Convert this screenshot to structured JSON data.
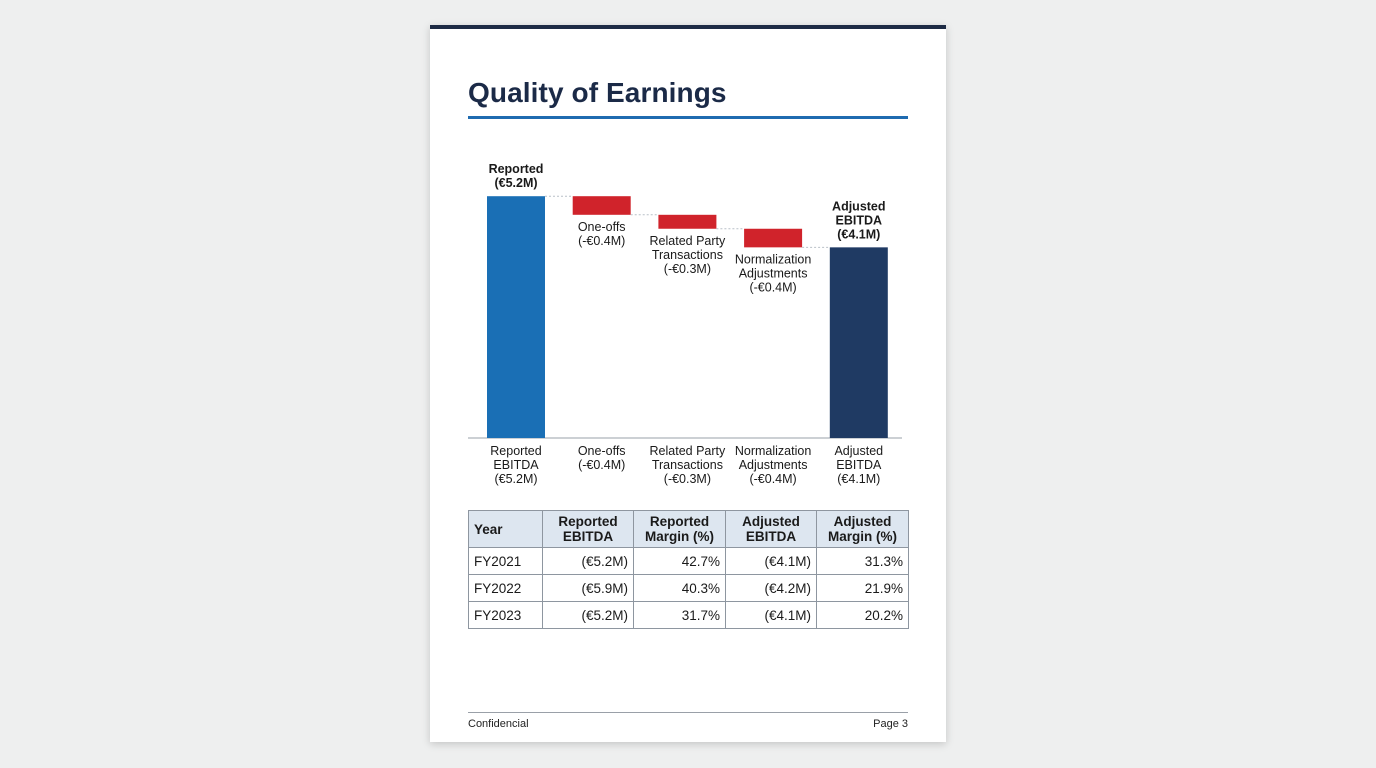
{
  "page": {
    "title": "Quality of Earnings",
    "footer_left": "Confidencial",
    "footer_right": "Page 3"
  },
  "colors": {
    "total_start": "#1a6fb5",
    "decrease": "#d0232b",
    "total_end": "#1f3a63",
    "title": "#1b2a47",
    "title_rule": "#1f6bb0",
    "table_header_bg": "#dde6f0"
  },
  "chart_data": {
    "type": "waterfall",
    "title": "",
    "xlabel": "",
    "ylabel": "",
    "grid": false,
    "unit": "€M",
    "bars": [
      {
        "kind": "total",
        "value": 5.2,
        "top_label": [
          "Reported",
          "(€5.2M)"
        ],
        "axis_label": [
          "Reported",
          "EBITDA",
          "(€5.2M)"
        ]
      },
      {
        "kind": "decrease",
        "value": -0.4,
        "top_label": [
          "One-offs",
          "(-€0.4M)"
        ],
        "axis_label": [
          "One-offs",
          "(-€0.4M)"
        ]
      },
      {
        "kind": "decrease",
        "value": -0.3,
        "top_label": [
          "Related Party",
          "Transactions",
          "(-€0.3M)"
        ],
        "axis_label": [
          "Related Party",
          "Transactions",
          "(-€0.3M)"
        ]
      },
      {
        "kind": "decrease",
        "value": -0.4,
        "top_label": [
          "Normalization",
          "Adjustments",
          "(-€0.4M)"
        ],
        "axis_label": [
          "Normalization",
          "Adjustments",
          "(-€0.4M)"
        ]
      },
      {
        "kind": "total",
        "value": 4.1,
        "top_label": [
          "Adjusted",
          "EBITDA",
          "(€4.1M)"
        ],
        "axis_label": [
          "Adjusted",
          "EBITDA",
          "(€4.1M)"
        ]
      }
    ]
  },
  "table": {
    "headers": [
      "Year",
      "Reported EBITDA",
      "Reported Margin (%)",
      "Adjusted EBITDA",
      "Adjusted Margin (%)"
    ],
    "rows": [
      [
        "FY2021",
        "(€5.2M)",
        "42.7%",
        "(€4.1M)",
        "31.3%"
      ],
      [
        "FY2022",
        "(€5.9M)",
        "40.3%",
        "(€4.2M)",
        "21.9%"
      ],
      [
        "FY2023",
        "(€5.2M)",
        "31.7%",
        "(€4.1M)",
        "20.2%"
      ]
    ]
  }
}
